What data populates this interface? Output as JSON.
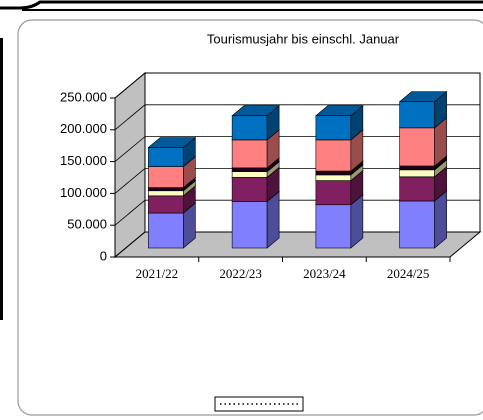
{
  "chart_data": {
    "type": "bar3d_stacked",
    "title": "Tourismusjahr bis einschl. Januar",
    "categories": [
      "2021/22",
      "2022/23",
      "2023/24",
      "2024/25"
    ],
    "series": [
      {
        "color": "#8080ff",
        "values": [
          55000,
          73000,
          68000,
          74000
        ]
      },
      {
        "color": "#802060",
        "values": [
          27000,
          38000,
          38000,
          38000
        ]
      },
      {
        "color": "#ffffc0",
        "values": [
          8000,
          9000,
          9000,
          11000
        ]
      },
      {
        "color": "#200020",
        "values": [
          5000,
          6000,
          6000,
          6000
        ]
      },
      {
        "color": "#ff8080",
        "values": [
          33000,
          44000,
          49000,
          60000
        ]
      },
      {
        "color": "#0070c0",
        "values": [
          30000,
          38000,
          38000,
          41000
        ]
      }
    ],
    "ylim": [
      0,
      250000
    ],
    "yticks": [
      0,
      {
        "value": 50000,
        "label": "50.000"
      },
      {
        "value": 100000,
        "label": "100.000"
      },
      {
        "value": 150000,
        "label": "150.000"
      },
      {
        "value": 200000,
        "label": "200.000"
      },
      {
        "value": 250000,
        "label": "250.000"
      }
    ],
    "grid": true
  }
}
